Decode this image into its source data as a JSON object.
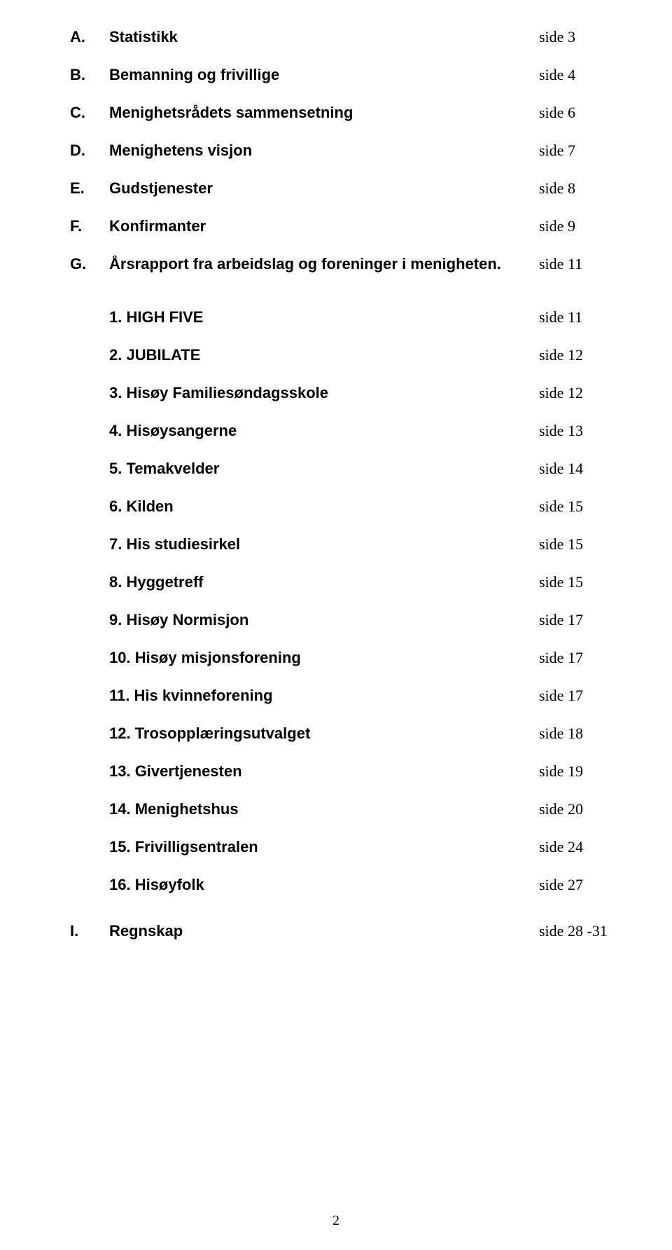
{
  "sections": [
    {
      "marker": "A.",
      "label": "Statistikk",
      "page": "side 3"
    },
    {
      "marker": "B.",
      "label": "Bemanning og frivillige",
      "page": "side 4"
    },
    {
      "marker": "C.",
      "label": "Menighetsrådets sammensetning",
      "page": "side 6"
    },
    {
      "marker": "D.",
      "label": "Menighetens visjon",
      "page": "side 7"
    },
    {
      "marker": "E.",
      "label": "Gudstjenester",
      "page": "side 8"
    },
    {
      "marker": "F.",
      "label": "Konfirmanter",
      "page": "side 9"
    },
    {
      "marker": "G.",
      "label": "Årsrapport fra arbeidslag og foreninger i menigheten.",
      "page": "side 11"
    }
  ],
  "subsections": [
    {
      "label": "1.  HIGH FIVE",
      "page": "side  11"
    },
    {
      "label": "2.  JUBILATE",
      "page": "side 12"
    },
    {
      "label": "3.  Hisøy Familiesøndagsskole",
      "page": "side 12"
    },
    {
      "label": "4.  Hisøysangerne",
      "page": "side 13"
    },
    {
      "label": "5.  Temakvelder",
      "page": "side 14"
    },
    {
      "label": "6.  Kilden",
      "page": "side 15"
    },
    {
      "label": "7.  His studiesirkel",
      "page": "side 15"
    },
    {
      "label": "8.  Hyggetreff",
      "page": "side 15"
    },
    {
      "label": "9.  Hisøy Normisjon",
      "page": "side 17"
    },
    {
      "label": "10. Hisøy misjonsforening",
      "page": "side 17"
    },
    {
      "label": "11. His kvinneforening",
      "page": "side 17"
    },
    {
      "label": "12. Trosopplæringsutvalget",
      "page": "side 18"
    },
    {
      "label": "13. Givertjenesten",
      "page": "side 19"
    },
    {
      "label": "14. Menighetshus",
      "page": "side 20"
    },
    {
      "label": "15. Frivilligsentralen",
      "page": "side 24"
    },
    {
      "label": "16. Hisøyfolk",
      "page": "side 27"
    }
  ],
  "final": {
    "marker": "I.",
    "label": "Regnskap",
    "page": "side 28 -31"
  },
  "pageNumber": "2"
}
